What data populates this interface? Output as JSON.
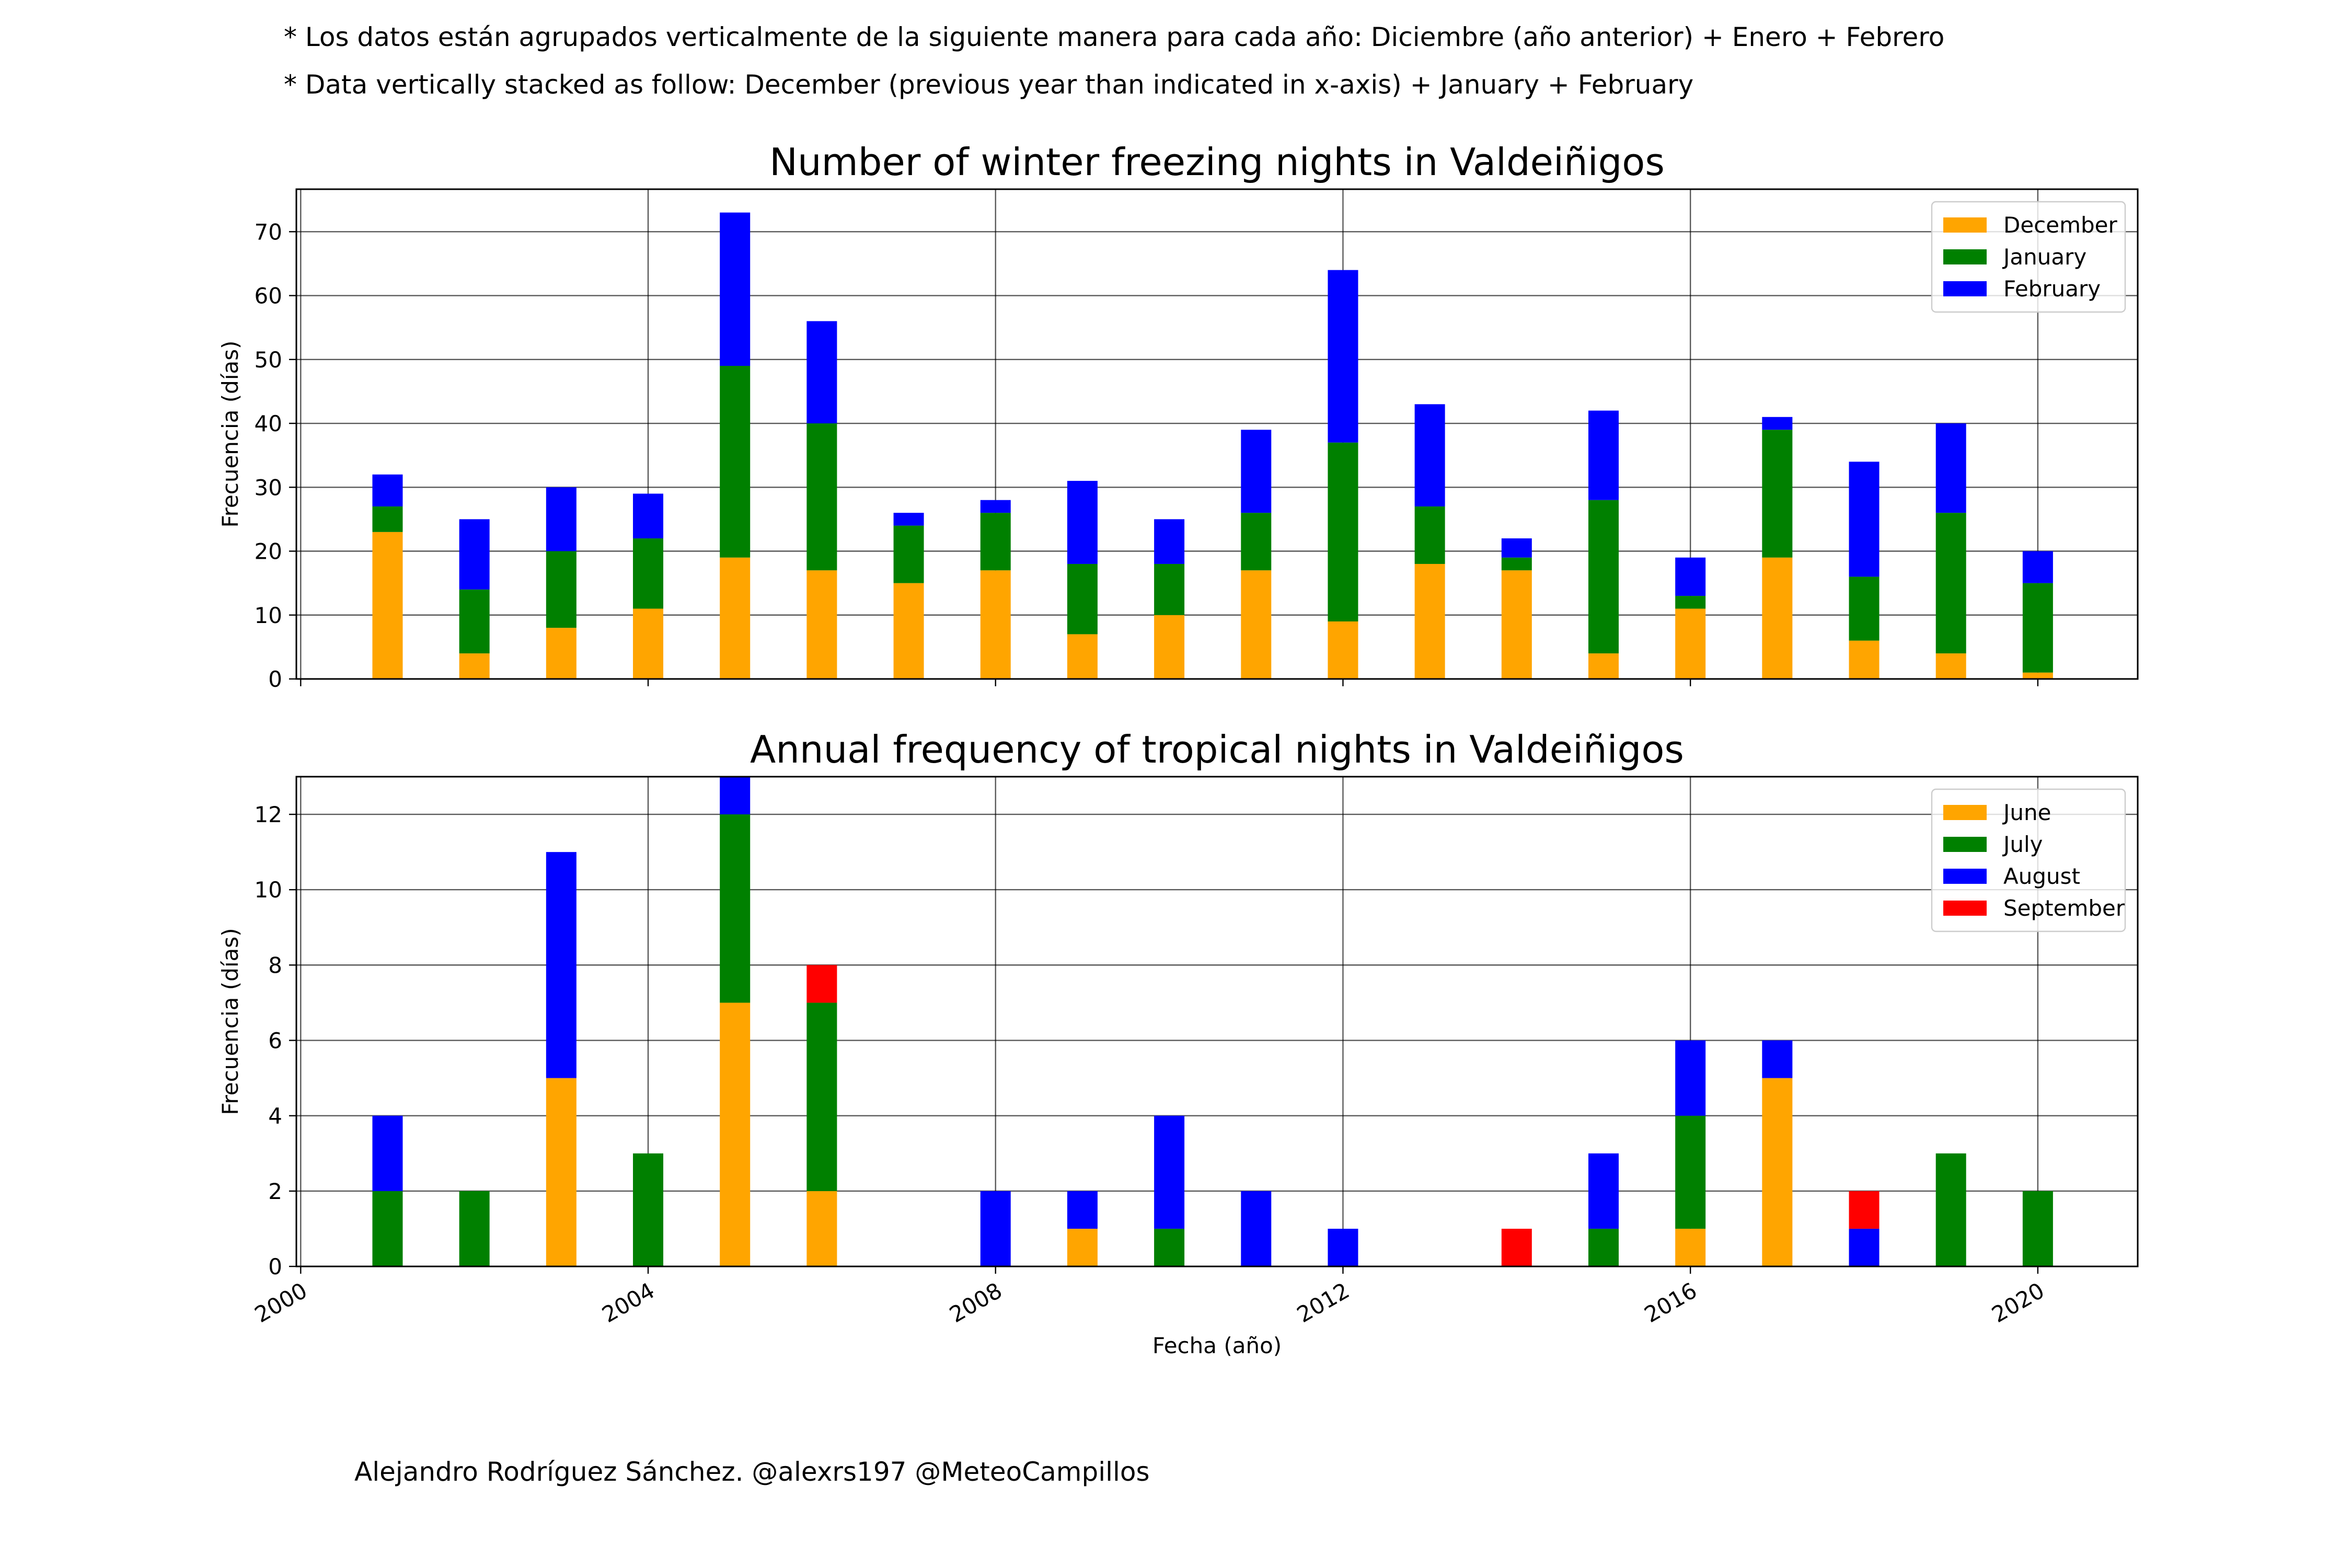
{
  "notes": {
    "es": "* Los datos están agrupados verticalmente de la siguiente manera para cada año: Diciembre (año anterior) + Enero  + Febrero",
    "en": "* Data vertically stacked as follow: December (previous year than indicated in x-axis) + January  + February"
  },
  "credit": "Alejandro Rodríguez Sánchez. @alexrs197 @MeteoCampillos",
  "chart_data": [
    {
      "type": "bar",
      "stacked": true,
      "title": "Number of winter freezing nights in Valdeiñigos",
      "xlabel": "",
      "ylabel": "Frecuencia (días)",
      "xlim": [
        1999.95,
        2021.15
      ],
      "ylim": [
        0,
        76.65
      ],
      "yticks": [
        0,
        10,
        20,
        30,
        40,
        50,
        60,
        70
      ],
      "xticks": [
        2000,
        2004,
        2008,
        2012,
        2016,
        2020
      ],
      "xtick_labels_shown": false,
      "grid": true,
      "legend_position": "top-right",
      "x": [
        2001,
        2002,
        2003,
        2004,
        2005,
        2006,
        2007,
        2008,
        2009,
        2010,
        2011,
        2012,
        2013,
        2014,
        2015,
        2016,
        2017,
        2018,
        2019,
        2020
      ],
      "series": [
        {
          "name": "December",
          "color": "#ffa500",
          "values": [
            23,
            4,
            8,
            11,
            19,
            17,
            15,
            17,
            7,
            10,
            17,
            9,
            18,
            17,
            4,
            11,
            19,
            6,
            4,
            1
          ]
        },
        {
          "name": "January",
          "color": "#008000",
          "values": [
            4,
            10,
            12,
            11,
            30,
            23,
            9,
            9,
            11,
            8,
            9,
            28,
            9,
            2,
            24,
            2,
            20,
            10,
            22,
            14
          ]
        },
        {
          "name": "February",
          "color": "#0000ff",
          "values": [
            5,
            11,
            10,
            7,
            24,
            16,
            2,
            2,
            13,
            7,
            13,
            27,
            16,
            3,
            14,
            6,
            2,
            18,
            14,
            5
          ]
        }
      ]
    },
    {
      "type": "bar",
      "stacked": true,
      "title": "Annual frequency of tropical nights in Valdeiñigos",
      "xlabel": "Fecha (año)",
      "ylabel": "Frecuencia (días)",
      "xlim": [
        1999.95,
        2021.15
      ],
      "ylim": [
        0,
        13
      ],
      "yticks": [
        0,
        2,
        4,
        6,
        8,
        10,
        12
      ],
      "xticks": [
        2000,
        2004,
        2008,
        2012,
        2016,
        2020
      ],
      "xtick_labels": [
        "2000",
        "2004",
        "2008",
        "2012",
        "2016",
        "2020"
      ],
      "grid": true,
      "legend_position": "top-right",
      "x": [
        2001,
        2002,
        2003,
        2004,
        2005,
        2006,
        2007,
        2008,
        2009,
        2010,
        2011,
        2012,
        2013,
        2014,
        2015,
        2016,
        2017,
        2018,
        2019,
        2020
      ],
      "series": [
        {
          "name": "June",
          "color": "#ffa500",
          "values": [
            0,
            0,
            5,
            0,
            7,
            2,
            0,
            0,
            1,
            0,
            0,
            0,
            0,
            0,
            0,
            1,
            5,
            0,
            0,
            0
          ]
        },
        {
          "name": "July",
          "color": "#008000",
          "values": [
            2,
            2,
            0,
            3,
            5,
            5,
            0,
            0,
            0,
            1,
            0,
            0,
            0,
            0,
            1,
            3,
            0,
            0,
            3,
            2
          ]
        },
        {
          "name": "August",
          "color": "#0000ff",
          "values": [
            2,
            0,
            6,
            0,
            1,
            0,
            0,
            2,
            1,
            3,
            2,
            1,
            0,
            0,
            2,
            2,
            1,
            1,
            0,
            0
          ]
        },
        {
          "name": "September",
          "color": "#ff0000",
          "values": [
            0,
            0,
            0,
            0,
            0,
            1,
            0,
            0,
            0,
            0,
            0,
            0,
            0,
            1,
            0,
            0,
            0,
            1,
            0,
            0
          ]
        }
      ]
    }
  ]
}
